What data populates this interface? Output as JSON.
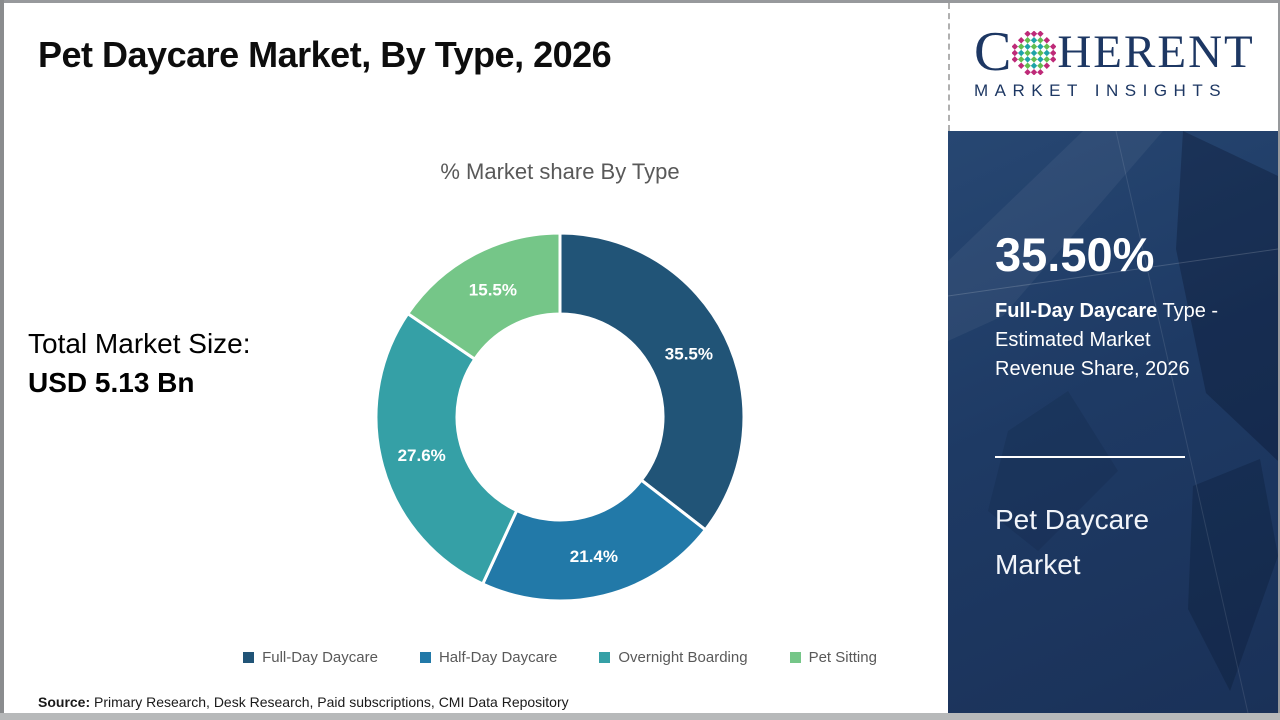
{
  "header": {
    "title": "Pet Daycare Market, By Type, 2026"
  },
  "logo": {
    "word_start": "C",
    "word_end": "HERENT",
    "tagline": "MARKET INSIGHTS",
    "brand_color": "#1d3763",
    "globe_colors": {
      "ring": "#be2a78",
      "teal": "#1fa3a8",
      "green": "#63be4f"
    }
  },
  "left_panel": {
    "label": "Total Market Size:",
    "value": "USD 5.13 Bn"
  },
  "chart_data": {
    "type": "pie",
    "donut": true,
    "title": "% Market share By Type",
    "categories": [
      "Full-Day Daycare",
      "Half-Day Daycare",
      "Overnight Boarding",
      "Pet Sitting"
    ],
    "values": [
      35.5,
      21.4,
      27.6,
      15.5
    ],
    "labels": [
      "35.5%",
      "21.4%",
      "27.6%",
      "15.5%"
    ],
    "colors": [
      "#215477",
      "#2279a8",
      "#35a0a6",
      "#75c688"
    ],
    "start_angle_deg": 0,
    "direction": "clockwise",
    "legend_position": "bottom",
    "label_color": "#ffffff"
  },
  "sidebar": {
    "stat_value": "35.50%",
    "stat_desc_bold": "Full-Day Daycare",
    "stat_desc_rest": " Type - Estimated Market Revenue Share, 2026",
    "market_name_lines": [
      "Pet Daycare",
      "Market"
    ],
    "background_color": "#1e3a64"
  },
  "footer": {
    "source_label": "Source:",
    "source_text": " Primary Research, Desk Research, Paid subscriptions, CMI Data Repository"
  }
}
